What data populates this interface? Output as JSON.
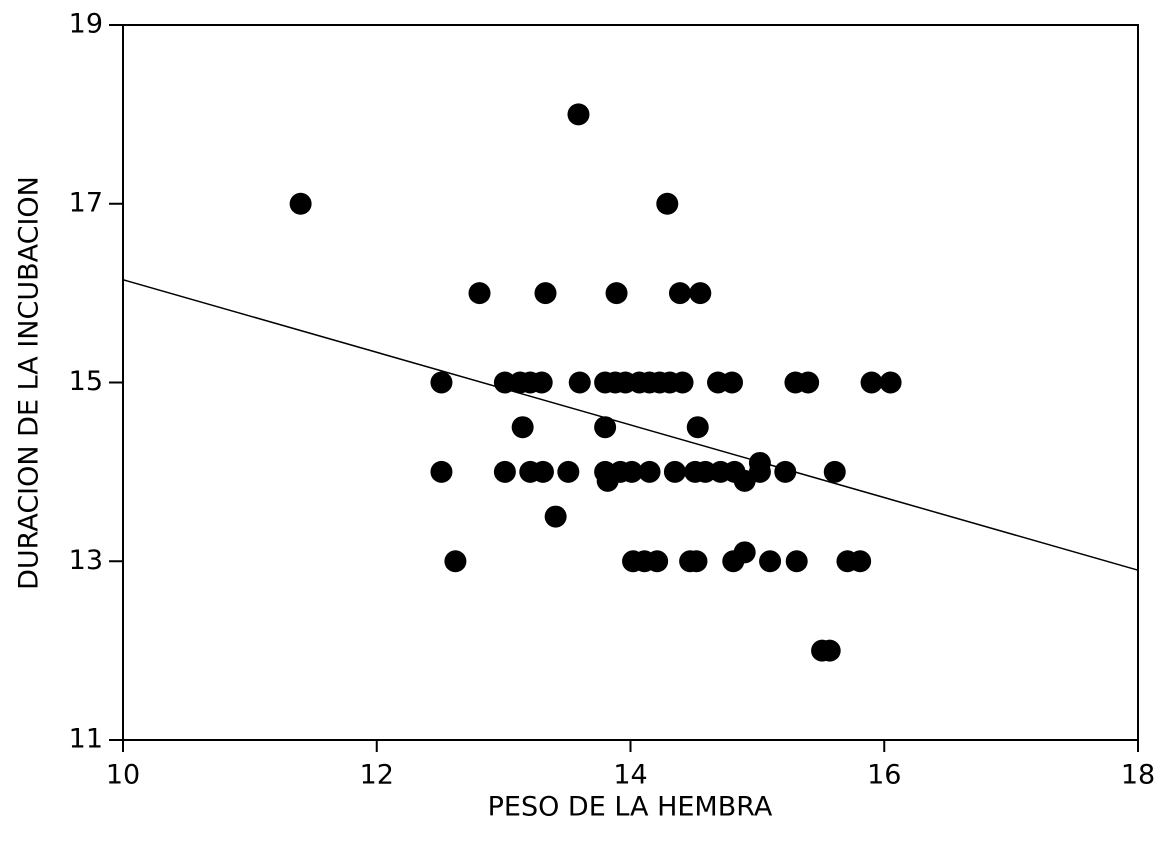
{
  "chart_data": {
    "type": "scatter",
    "x_label": "PESO DE LA HEMBRA",
    "y_label": "DURACION DE LA INCUBACION",
    "color": "#000000",
    "xlim": [
      10,
      18
    ],
    "xticks": [
      10,
      12,
      14,
      16,
      18
    ],
    "ylim": [
      11,
      19
    ],
    "yticks": [
      11,
      13,
      15,
      17,
      19
    ],
    "grid": false,
    "series": [
      {
        "name": null,
        "color": "#000000",
        "x": [
          11.4,
          13.59,
          14.29,
          12.81,
          13.33,
          13.89,
          14.39,
          14.55,
          12.51,
          13.01,
          13.13,
          13.21,
          13.3,
          13.6,
          13.8,
          13.88,
          13.96,
          14.07,
          14.15,
          14.23,
          14.31,
          14.41,
          14.69,
          14.8,
          15.3,
          15.4,
          15.9,
          16.05,
          13.15,
          13.8,
          14.53,
          12.51,
          13.01,
          13.21,
          13.31,
          13.51,
          13.8,
          13.92,
          14.01,
          14.15,
          14.35,
          14.51,
          14.59,
          14.71,
          14.82,
          15.02,
          15.22,
          15.61,
          13.82,
          14.9,
          15.02,
          13.41,
          14.9,
          12.62,
          14.02,
          14.11,
          14.21,
          14.47,
          14.52,
          14.81,
          15.1,
          15.31,
          15.71,
          15.81,
          15.51,
          15.57
        ],
        "values": [
          17,
          18,
          17,
          16,
          16,
          16,
          16,
          16,
          15,
          15,
          15,
          15,
          15,
          15,
          15,
          15,
          15,
          15,
          15,
          15,
          15,
          15,
          15,
          15,
          15,
          15,
          15,
          15,
          14.5,
          14.5,
          14.5,
          14,
          14,
          14,
          14,
          14,
          14,
          14,
          14,
          14,
          14,
          14,
          14,
          14,
          14,
          14,
          14,
          14,
          13.9,
          13.9,
          14.1,
          13.5,
          13.1,
          13,
          13,
          13,
          13,
          13,
          13,
          13,
          13,
          13,
          13,
          13,
          12,
          12
        ]
      }
    ],
    "trendline": {
      "x": [
        10,
        18
      ],
      "y": [
        16.15,
        12.9
      ]
    }
  }
}
